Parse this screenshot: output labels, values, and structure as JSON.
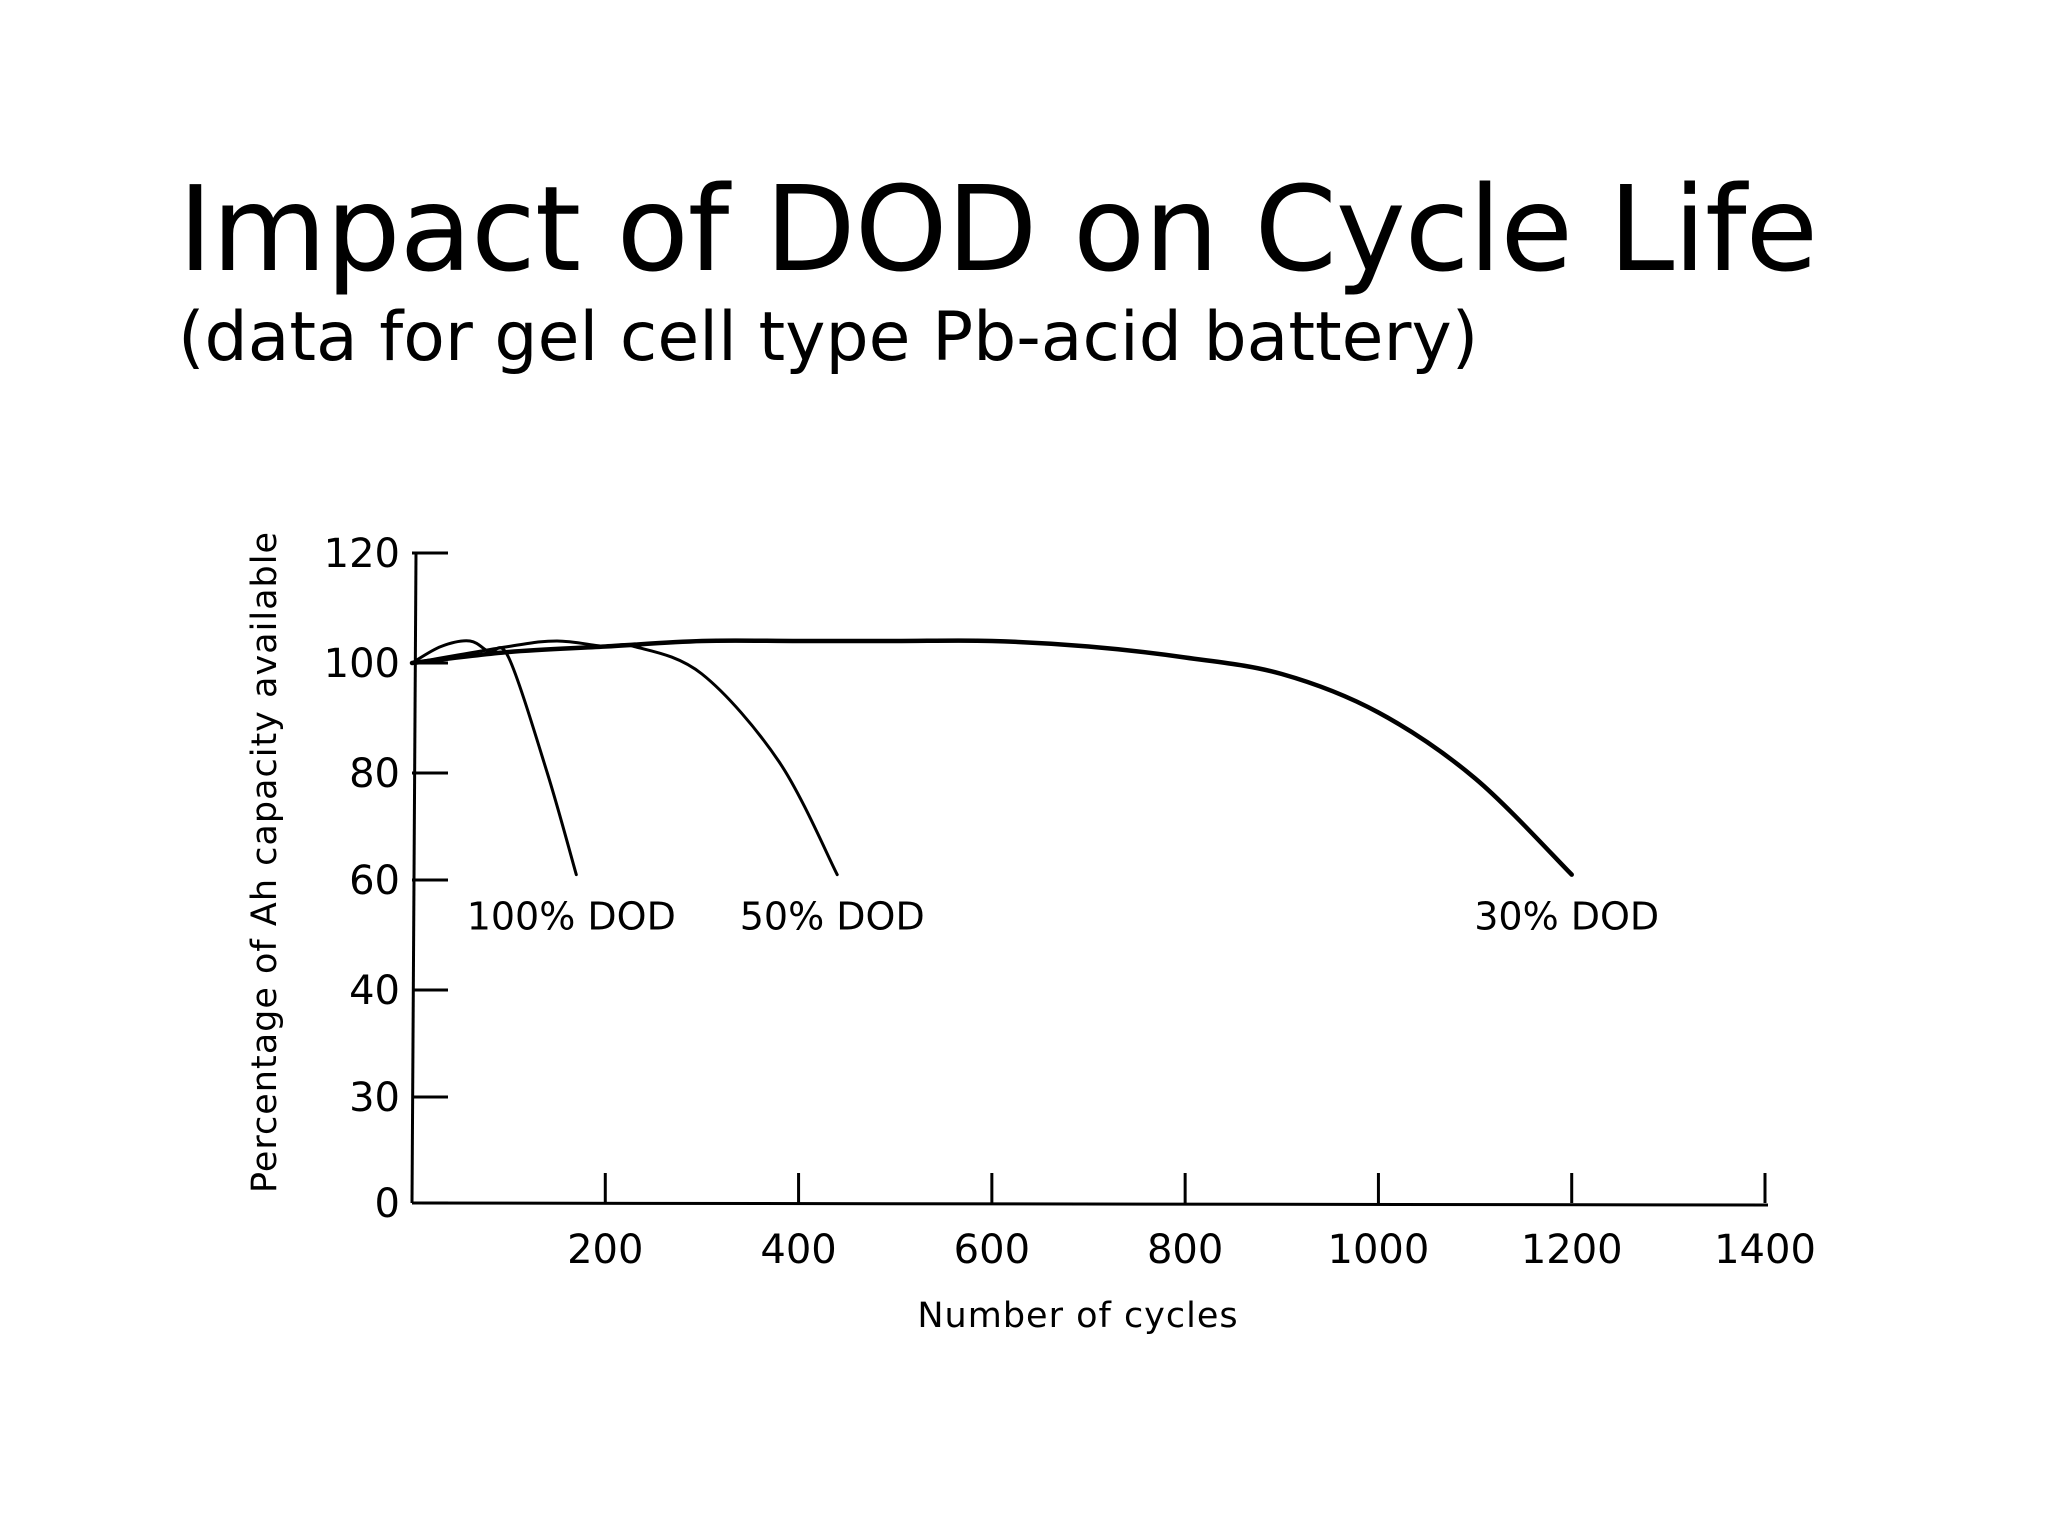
{
  "title": "Impact of DOD on Cycle Life",
  "subtitle": "(data for gel cell type Pb-acid battery)",
  "chart_data": {
    "type": "line",
    "xlabel": "Number of cycles",
    "ylabel": "Percentage of Ah capacity available",
    "xlim": [
      0,
      1400
    ],
    "x_ticks": [
      200,
      400,
      600,
      800,
      1000,
      1200,
      1400
    ],
    "y_ticks": [
      0,
      30,
      40,
      60,
      80,
      100,
      120
    ],
    "grid": false,
    "series": [
      {
        "name": "100% DOD",
        "x": [
          0,
          30,
          60,
          80,
          100,
          140,
          170
        ],
        "y": [
          100,
          103,
          104,
          102,
          101,
          80,
          61
        ]
      },
      {
        "name": "50% DOD",
        "x": [
          0,
          100,
          150,
          200,
          230,
          300,
          380,
          440
        ],
        "y": [
          100,
          103,
          104,
          103,
          103,
          98,
          82,
          61
        ]
      },
      {
        "name": "30% DOD",
        "x": [
          0,
          100,
          200,
          300,
          400,
          500,
          600,
          700,
          800,
          900,
          1000,
          1100,
          1200
        ],
        "y": [
          100,
          102,
          103,
          104,
          104,
          104,
          104,
          103,
          101,
          98,
          91,
          79,
          61
        ]
      }
    ]
  }
}
